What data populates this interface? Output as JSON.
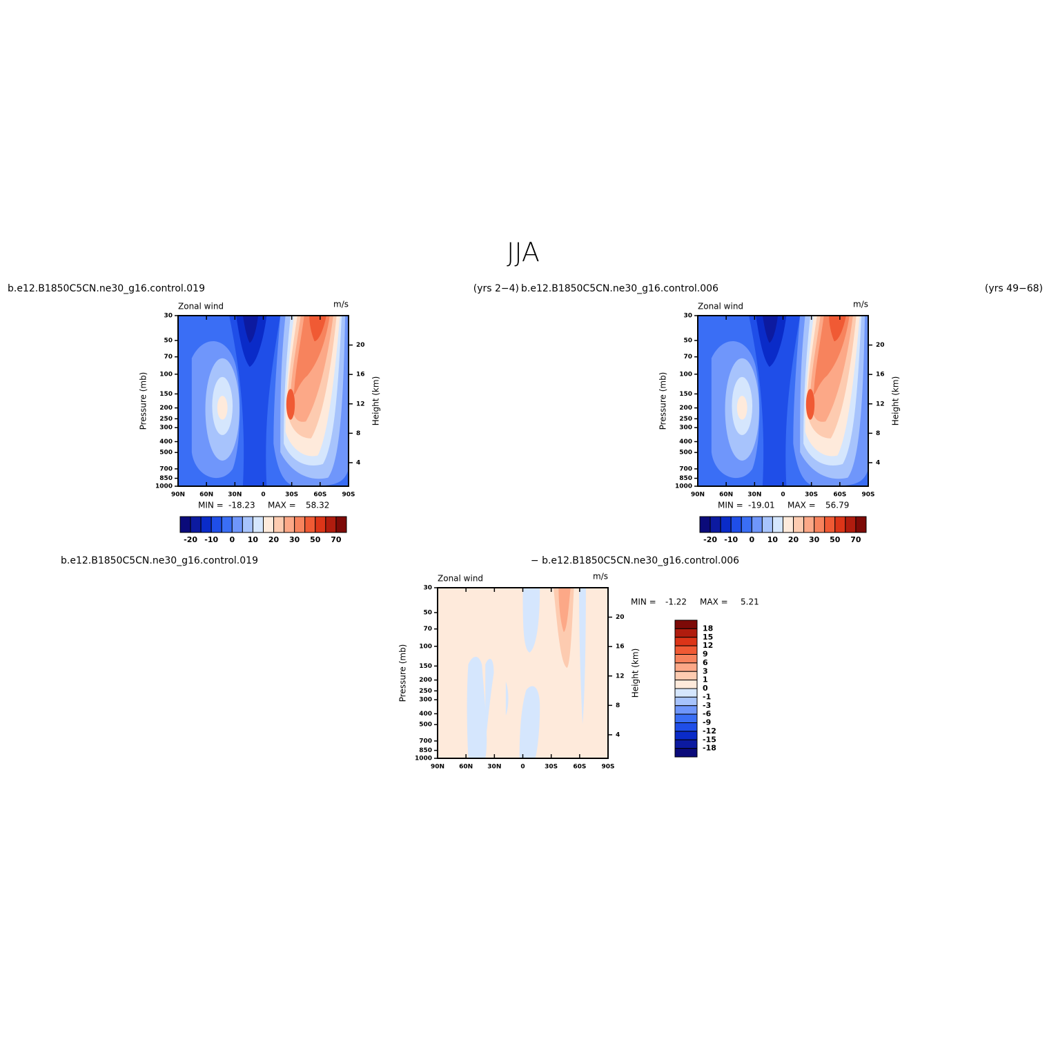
{
  "title": "JJA",
  "chart_data": [
    {
      "type": "contour",
      "left_title": "b.e12.B1850C5CN.ne30_g16.control.019",
      "right_title": "(yrs 2−4)",
      "subtitle": "Zonal wind",
      "units": "m/s",
      "ylabel": "Pressure (mb)",
      "y2label": "Height (km)",
      "xlim": [
        -90,
        90
      ],
      "xticks": [
        {
          "value": -90,
          "label": "90N"
        },
        {
          "value": -60,
          "label": "60N"
        },
        {
          "value": -30,
          "label": "30N"
        },
        0,
        {
          "value": 30,
          "label": "30S"
        },
        {
          "value": 60,
          "label": "60S"
        },
        {
          "value": 90,
          "label": "90S"
        }
      ],
      "ylim": [
        1000,
        30
      ],
      "log_y": true,
      "yticks": [
        30,
        50,
        70,
        100,
        150,
        200,
        250,
        300,
        400,
        500,
        700,
        850,
        1000
      ],
      "y2lim": [
        0.8,
        24
      ],
      "y2ticks": [
        4,
        8,
        12,
        16,
        20
      ],
      "min_label": "MIN =",
      "min": -18.23,
      "max_label": "MAX =",
      "max": 58.32,
      "colorbar": {
        "orientation": "horizontal",
        "colors": [
          "#0b0b7a",
          "#0c1aa0",
          "#0a2bc8",
          "#1f4ee8",
          "#3a6ef5",
          "#6f96fb",
          "#a7c3fc",
          "#d5e6fd",
          "#feeadb",
          "#fdcbb0",
          "#fca887",
          "#f7835d",
          "#f05a34",
          "#dc3518",
          "#b01c0e",
          "#7d0a07"
        ],
        "ticks": [
          -20,
          -10,
          0,
          10,
          20,
          30,
          50,
          70
        ]
      }
    },
    {
      "type": "contour",
      "left_title": "b.e12.B1850C5CN.ne30_g16.control.006",
      "right_title": "(yrs 49−68)",
      "subtitle": "Zonal wind",
      "units": "m/s",
      "ylabel": "Pressure (mb)",
      "y2label": "Height (km)",
      "xlim": [
        -90,
        90
      ],
      "xticks": [
        {
          "value": -90,
          "label": "90N"
        },
        {
          "value": -60,
          "label": "60N"
        },
        {
          "value": -30,
          "label": "30N"
        },
        0,
        {
          "value": 30,
          "label": "30S"
        },
        {
          "value": 60,
          "label": "60S"
        },
        {
          "value": 90,
          "label": "90S"
        }
      ],
      "ylim": [
        1000,
        30
      ],
      "log_y": true,
      "yticks": [
        30,
        50,
        70,
        100,
        150,
        200,
        250,
        300,
        400,
        500,
        700,
        850,
        1000
      ],
      "y2lim": [
        0.8,
        24
      ],
      "y2ticks": [
        4,
        8,
        12,
        16,
        20
      ],
      "min_label": "MIN =",
      "min": -19.01,
      "max_label": "MAX =",
      "max": 56.79,
      "colorbar": {
        "orientation": "horizontal",
        "colors": [
          "#0b0b7a",
          "#0c1aa0",
          "#0a2bc8",
          "#1f4ee8",
          "#3a6ef5",
          "#6f96fb",
          "#a7c3fc",
          "#d5e6fd",
          "#feeadb",
          "#fdcbb0",
          "#fca887",
          "#f7835d",
          "#f05a34",
          "#dc3518",
          "#b01c0e",
          "#7d0a07"
        ],
        "ticks": [
          -20,
          -10,
          0,
          10,
          20,
          30,
          50,
          70
        ]
      }
    },
    {
      "type": "contour",
      "left_title": "b.e12.B1850C5CN.ne30_g16.control.019",
      "center_title": "− b.e12.B1850C5CN.ne30_g16.control.006",
      "subtitle": "Zonal wind",
      "units": "m/s",
      "ylabel": "Pressure (mb)",
      "y2label": "Height (km)",
      "xlim": [
        -90,
        90
      ],
      "xticks": [
        {
          "value": -90,
          "label": "90N"
        },
        {
          "value": -60,
          "label": "60N"
        },
        {
          "value": -30,
          "label": "30N"
        },
        0,
        {
          "value": 30,
          "label": "30S"
        },
        {
          "value": 60,
          "label": "60S"
        },
        {
          "value": 90,
          "label": "90S"
        }
      ],
      "ylim": [
        1000,
        30
      ],
      "log_y": true,
      "yticks": [
        30,
        50,
        70,
        100,
        150,
        200,
        250,
        300,
        400,
        500,
        700,
        850,
        1000
      ],
      "y2lim": [
        0.8,
        24
      ],
      "y2ticks": [
        4,
        8,
        12,
        16,
        20
      ],
      "min_label": "MIN =",
      "min": -1.22,
      "max_label": "MAX =",
      "max": 5.21,
      "colorbar": {
        "orientation": "vertical",
        "colors": [
          "#7d0a07",
          "#b01c0e",
          "#dc3518",
          "#f05a34",
          "#f7835d",
          "#fca887",
          "#fdcbb0",
          "#feeadb",
          "#d5e6fd",
          "#a7c3fc",
          "#6f96fb",
          "#3a6ef5",
          "#1f4ee8",
          "#0a2bc8",
          "#0c1aa0",
          "#0b0b7a"
        ],
        "ticks": [
          18,
          15,
          12,
          9,
          6,
          3,
          1,
          0,
          -1,
          -3,
          -6,
          -9,
          -12,
          -15,
          -18
        ]
      }
    }
  ]
}
